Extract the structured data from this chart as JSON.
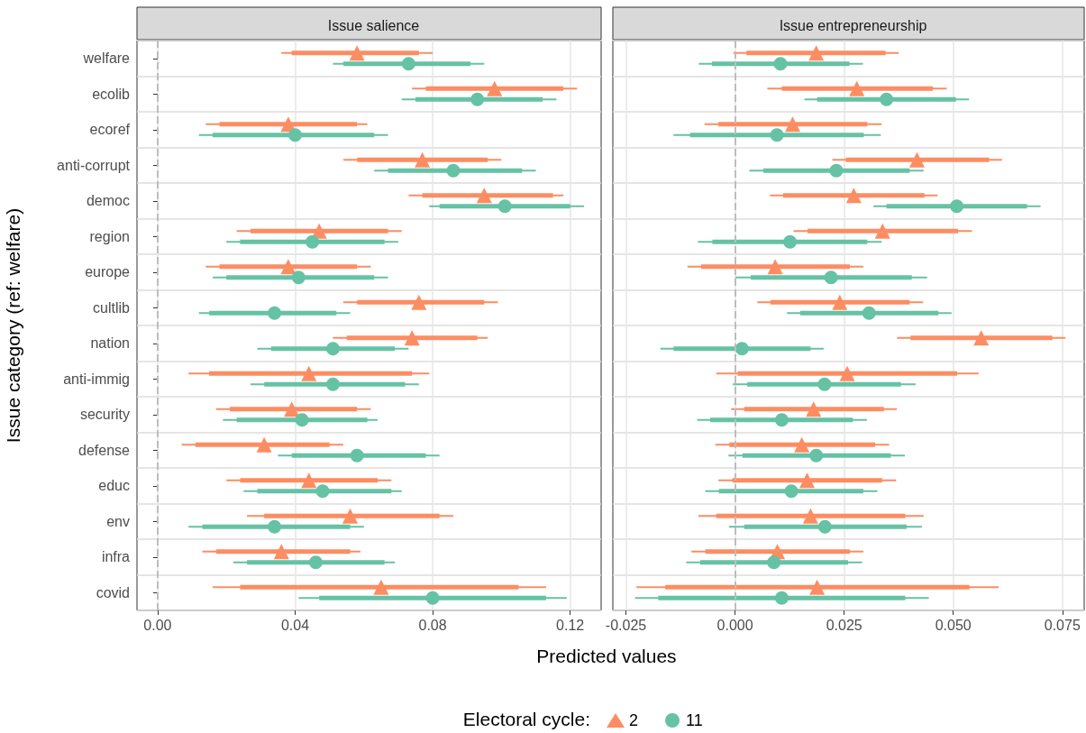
{
  "chart_data": [
    {
      "type": "scatter",
      "title": "Issue salience",
      "xlabel": "Predicted values",
      "ylabel": "Issue category (ref: welfare)",
      "legend_title": "Electoral cycle:",
      "legend": "bottom",
      "orientation": "horizontal",
      "grid": true,
      "categories": [
        "welfare",
        "ecolib",
        "ecoref",
        "anti-corrupt",
        "democ",
        "region",
        "europe",
        "cultlib",
        "nation",
        "anti-immig",
        "security",
        "defense",
        "educ",
        "env",
        "infra",
        "covid"
      ],
      "xlim": [
        -0.006,
        0.129
      ],
      "xticks": [
        {
          "value": 0,
          "label": "0.00"
        },
        {
          "value": 0.04,
          "label": "0.04"
        },
        {
          "value": 0.08,
          "label": "0.08"
        },
        {
          "value": 0.12,
          "label": "0.12"
        }
      ],
      "ref_lines": [
        {
          "axis": "x",
          "value": 0,
          "label": null,
          "color": "#bdbdbd",
          "line_style": "dashed"
        }
      ],
      "series": [
        {
          "type": "bar",
          "color": "#fc8d62",
          "base": [
            0.039,
            0.078,
            0.018,
            0.058,
            0.077,
            0.027,
            0.018,
            0.058,
            0.055,
            0.015,
            0.021,
            0.011,
            0.024,
            0.031,
            0.017,
            0.024
          ],
          "values": [
            0.037,
            0.04,
            0.04,
            0.038,
            0.038,
            0.04,
            0.04,
            0.037,
            0.038,
            0.059,
            0.037,
            0.039,
            0.04,
            0.051,
            0.039,
            0.081
          ]
        },
        {
          "type": "bar",
          "color": "#66c2a5",
          "base": [
            0.054,
            0.075,
            0.016,
            0.067,
            0.082,
            0.024,
            0.02,
            0.015,
            0.033,
            0.031,
            0.023,
            0.039,
            0.029,
            0.013,
            0.026,
            0.047
          ],
          "values": [
            0.037,
            0.037,
            0.047,
            0.039,
            0.038,
            0.042,
            0.043,
            0.037,
            0.036,
            0.041,
            0.038,
            0.039,
            0.039,
            0.043,
            0.04,
            0.066
          ]
        },
        {
          "name": "2",
          "color": "#fc8d62",
          "marker": "triangle",
          "values": [
            0.058,
            0.098,
            0.038,
            0.077,
            0.095,
            0.047,
            0.038,
            0.076,
            0.074,
            0.044,
            0.039,
            0.031,
            0.044,
            0.056,
            0.036,
            0.065
          ],
          "errors": [
            [
              0.036,
              0.08
            ],
            [
              0.074,
              0.122
            ],
            [
              0.014,
              0.061
            ],
            [
              0.054,
              0.1
            ],
            [
              0.073,
              0.118
            ],
            [
              0.023,
              0.071
            ],
            [
              0.014,
              0.062
            ],
            [
              0.054,
              0.099
            ],
            [
              0.051,
              0.096
            ],
            [
              0.009,
              0.079
            ],
            [
              0.017,
              0.062
            ],
            [
              0.007,
              0.054
            ],
            [
              0.02,
              0.068
            ],
            [
              0.026,
              0.086
            ],
            [
              0.013,
              0.059
            ],
            [
              0.016,
              0.113
            ]
          ]
        },
        {
          "name": "11",
          "color": "#66c2a5",
          "marker": "circle",
          "values": [
            0.073,
            0.093,
            0.04,
            0.086,
            0.101,
            0.045,
            0.041,
            0.034,
            0.051,
            0.051,
            0.042,
            0.058,
            0.048,
            0.034,
            0.046,
            0.08
          ],
          "errors": [
            [
              0.051,
              0.095
            ],
            [
              0.071,
              0.116
            ],
            [
              0.012,
              0.067
            ],
            [
              0.063,
              0.11
            ],
            [
              0.079,
              0.124
            ],
            [
              0.02,
              0.07
            ],
            [
              0.016,
              0.067
            ],
            [
              0.012,
              0.056
            ],
            [
              0.029,
              0.073
            ],
            [
              0.027,
              0.076
            ],
            [
              0.019,
              0.064
            ],
            [
              0.035,
              0.082
            ],
            [
              0.025,
              0.071
            ],
            [
              0.009,
              0.06
            ],
            [
              0.022,
              0.069
            ],
            [
              0.041,
              0.119
            ]
          ]
        }
      ]
    },
    {
      "type": "scatter",
      "title": "Issue entrepreneurship",
      "orientation": "horizontal",
      "grid": true,
      "tick_labels": "x",
      "categories": [
        null,
        null,
        null,
        null,
        null,
        null,
        null,
        null,
        null,
        null,
        null,
        null,
        null,
        null,
        null,
        null
      ],
      "xlim": [
        -0.028,
        0.08
      ],
      "xticks": [
        {
          "value": -0.025,
          "label": "-0.025"
        },
        {
          "value": 0,
          "label": "0.000"
        },
        {
          "value": 0.025,
          "label": "0.025"
        },
        {
          "value": 0.05,
          "label": "0.050"
        },
        {
          "value": 0.075,
          "label": "0.075"
        }
      ],
      "ref_lines": [
        {
          "axis": "x",
          "value": 0,
          "label": null,
          "color": "#bdbdbd",
          "line_style": "dashed"
        }
      ],
      "series": [
        {
          "type": "bar",
          "color": "#fc8d62",
          "base": [
            0.0026,
            0.0107,
            -0.0038,
            0.0254,
            0.011,
            0.0166,
            -0.0078,
            0.0081,
            0.0402,
            0.0006,
            0.0021,
            -0.0013,
            -0.0006,
            -0.0043,
            -0.0068,
            -0.016
          ],
          "values": [
            0.0319,
            0.0346,
            0.0341,
            0.0328,
            0.0324,
            0.0345,
            0.0341,
            0.0319,
            0.0325,
            0.0503,
            0.032,
            0.0334,
            0.0343,
            0.0433,
            0.0331,
            0.0697
          ]
        },
        {
          "type": "bar",
          "color": "#66c2a5",
          "base": [
            -0.0053,
            0.0188,
            -0.0103,
            0.0065,
            0.0347,
            -0.0052,
            0.0036,
            0.0149,
            -0.0141,
            0.0028,
            -0.0057,
            0.0017,
            -0.0037,
            0.0021,
            -0.008,
            -0.0176
          ],
          "values": [
            0.0315,
            0.0318,
            0.0398,
            0.0335,
            0.0322,
            0.0355,
            0.0369,
            0.0317,
            0.0314,
            0.0352,
            0.0327,
            0.034,
            0.0331,
            0.0372,
            0.0339,
            0.0566
          ]
        },
        {
          "color": "#fc8d62",
          "marker": "triangle",
          "values": [
            0.0186,
            0.0279,
            0.0132,
            0.0417,
            0.0272,
            0.0338,
            0.0092,
            0.024,
            0.0564,
            0.0257,
            0.018,
            0.0153,
            0.0165,
            0.0173,
            0.0097,
            0.0188
          ],
          "errors": [
            [
              -0.0004,
              0.0375
            ],
            [
              0.0074,
              0.0485
            ],
            [
              -0.007,
              0.0336
            ],
            [
              0.0223,
              0.0612
            ],
            [
              0.008,
              0.0464
            ],
            [
              0.0134,
              0.0543
            ],
            [
              -0.0109,
              0.0294
            ],
            [
              0.0051,
              0.0431
            ],
            [
              0.0371,
              0.0757
            ],
            [
              -0.0043,
              0.0558
            ],
            [
              -0.0009,
              0.0371
            ],
            [
              -0.0045,
              0.0353
            ],
            [
              -0.0038,
              0.0369
            ],
            [
              -0.0084,
              0.0432
            ],
            [
              -0.01,
              0.0294
            ],
            [
              -0.0226,
              0.0604
            ]
          ]
        },
        {
          "color": "#66c2a5",
          "marker": "circle",
          "values": [
            0.0104,
            0.0347,
            0.0096,
            0.0232,
            0.0508,
            0.0126,
            0.022,
            0.0307,
            0.0016,
            0.0205,
            0.0107,
            0.0186,
            0.0129,
            0.0206,
            0.0089,
            0.0107
          ],
          "errors": [
            [
              -0.0083,
              0.0293
            ],
            [
              0.0159,
              0.0536
            ],
            [
              -0.0141,
              0.0334
            ],
            [
              0.0033,
              0.0432
            ],
            [
              0.0317,
              0.07
            ],
            [
              -0.0085,
              0.0336
            ],
            [
              0.0001,
              0.044
            ],
            [
              0.0119,
              0.0496
            ],
            [
              -0.0171,
              0.0203
            ],
            [
              -0.0005,
              0.0414
            ],
            [
              -0.0087,
              0.0302
            ],
            [
              -0.0015,
              0.0389
            ],
            [
              -0.0068,
              0.0326
            ],
            [
              -0.0014,
              0.0428
            ],
            [
              -0.0112,
              0.0291
            ],
            [
              -0.0229,
              0.0444
            ]
          ]
        }
      ]
    }
  ]
}
